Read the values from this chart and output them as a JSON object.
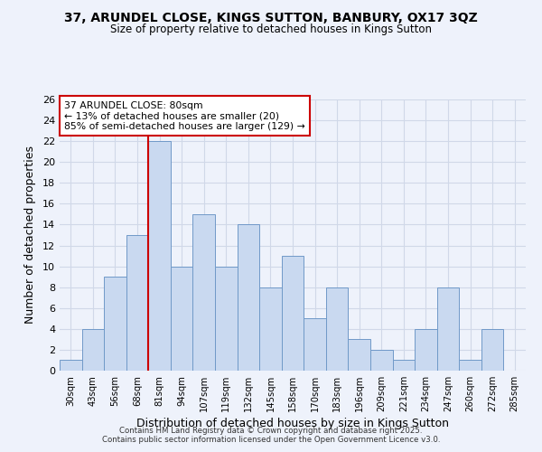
{
  "title": "37, ARUNDEL CLOSE, KINGS SUTTON, BANBURY, OX17 3QZ",
  "subtitle": "Size of property relative to detached houses in Kings Sutton",
  "xlabel": "Distribution of detached houses by size in Kings Sutton",
  "ylabel": "Number of detached properties",
  "bar_labels": [
    "30sqm",
    "43sqm",
    "56sqm",
    "68sqm",
    "81sqm",
    "94sqm",
    "107sqm",
    "119sqm",
    "132sqm",
    "145sqm",
    "158sqm",
    "170sqm",
    "183sqm",
    "196sqm",
    "209sqm",
    "221sqm",
    "234sqm",
    "247sqm",
    "260sqm",
    "272sqm",
    "285sqm"
  ],
  "bar_values": [
    1,
    4,
    9,
    13,
    22,
    10,
    15,
    10,
    14,
    8,
    11,
    5,
    8,
    3,
    2,
    1,
    4,
    8,
    1,
    4,
    0
  ],
  "bar_color": "#c9d9f0",
  "bar_edge_color": "#7099c8",
  "redline_index": 4,
  "redline_color": "#cc0000",
  "annotation_title": "37 ARUNDEL CLOSE: 80sqm",
  "annotation_line1": "← 13% of detached houses are smaller (20)",
  "annotation_line2": "85% of semi-detached houses are larger (129) →",
  "annotation_box_color": "#ffffff",
  "annotation_box_edge": "#cc0000",
  "ylim": [
    0,
    26
  ],
  "yticks": [
    0,
    2,
    4,
    6,
    8,
    10,
    12,
    14,
    16,
    18,
    20,
    22,
    24,
    26
  ],
  "background_color": "#eef2fb",
  "grid_color": "#d0d8e8",
  "footer_line1": "Contains HM Land Registry data © Crown copyright and database right 2025.",
  "footer_line2": "Contains public sector information licensed under the Open Government Licence v3.0."
}
